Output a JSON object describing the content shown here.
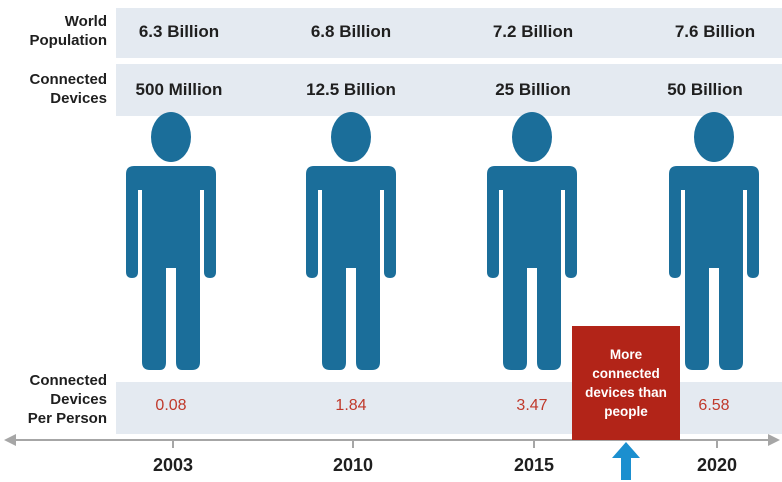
{
  "labels": {
    "population": "World\nPopulation",
    "devices": "Connected\nDevices",
    "per_person": "Connected\nDevices\nPer Person"
  },
  "columns": [
    {
      "year": "2003",
      "population": "6.3 Billion",
      "devices": "500 Million",
      "per_person": "0.08"
    },
    {
      "year": "2010",
      "population": "6.8 Billion",
      "devices": "12.5 Billion",
      "per_person": "1.84"
    },
    {
      "year": "2015",
      "population": "7.2 Billion",
      "devices": "25 Billion",
      "per_person": "3.47"
    },
    {
      "year": "2020",
      "population": "7.6 Billion",
      "devices": "50 Billion",
      "per_person": "6.58"
    }
  ],
  "callout": "More connected devices than people",
  "colors": {
    "person": "#1b6e9a",
    "band": "#e4eaf1",
    "ratio_text": "#c0392b",
    "callout_bg": "#b22418",
    "arrow": "#1b8fcf",
    "axis": "#a6a6a6"
  },
  "icons": {
    "person": "person-icon",
    "up_arrow": "up-arrow-icon"
  }
}
